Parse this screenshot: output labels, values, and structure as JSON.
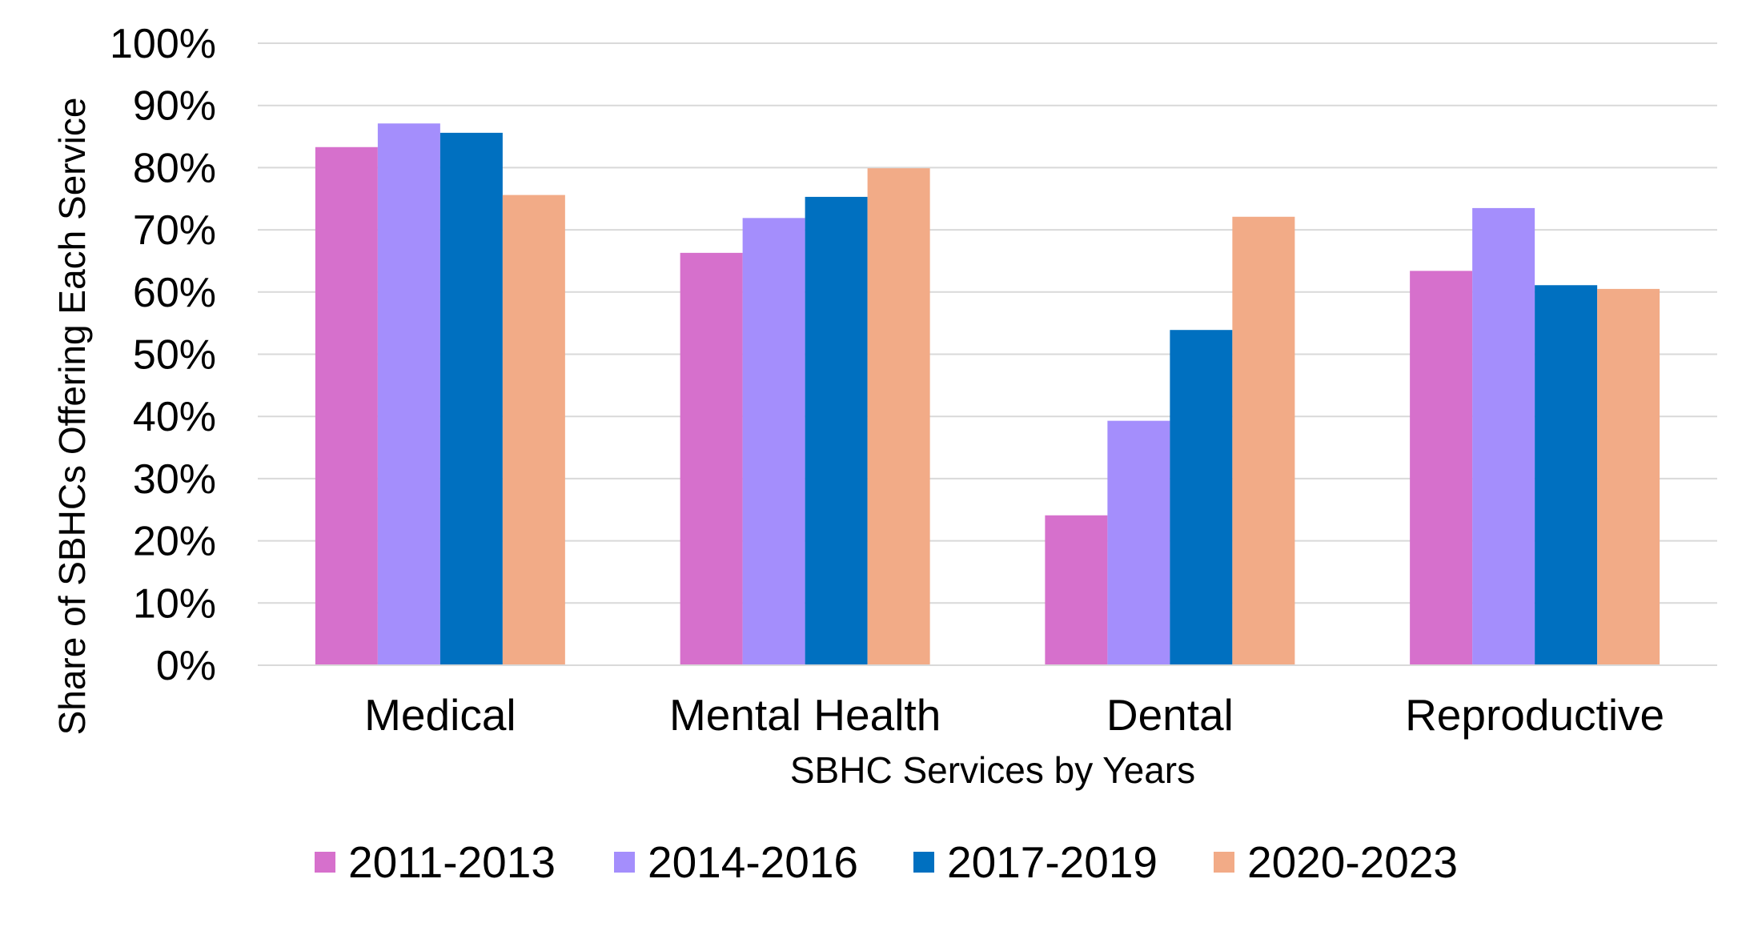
{
  "chart_data": {
    "type": "bar",
    "title": "",
    "xlabel": "SBHC Services by Years",
    "ylabel": "Share of SBHCs Offering Each Service",
    "categories": [
      "Medical",
      "Mental Health",
      "Dental",
      "Reproductive"
    ],
    "series": [
      {
        "name": "2011-2013",
        "color": "#D670CC",
        "values": [
          83.3,
          66.3,
          24.1,
          63.4
        ]
      },
      {
        "name": "2014-2016",
        "color": "#A48EFC",
        "values": [
          87.1,
          71.9,
          39.3,
          73.5
        ]
      },
      {
        "name": "2017-2019",
        "color": "#0070C0",
        "values": [
          85.6,
          75.3,
          53.9,
          61.1
        ]
      },
      {
        "name": "2020-2023",
        "color": "#F2AB87",
        "values": [
          75.6,
          79.9,
          72.1,
          60.5
        ]
      }
    ],
    "ylim": [
      0,
      100
    ],
    "yticks": [
      "0%",
      "10%",
      "20%",
      "30%",
      "40%",
      "50%",
      "60%",
      "70%",
      "80%",
      "90%",
      "100%"
    ],
    "grid": true,
    "legend_position": "bottom",
    "colors": {
      "grid": "#D9D9D9",
      "axis": "#D9D9D9"
    }
  }
}
